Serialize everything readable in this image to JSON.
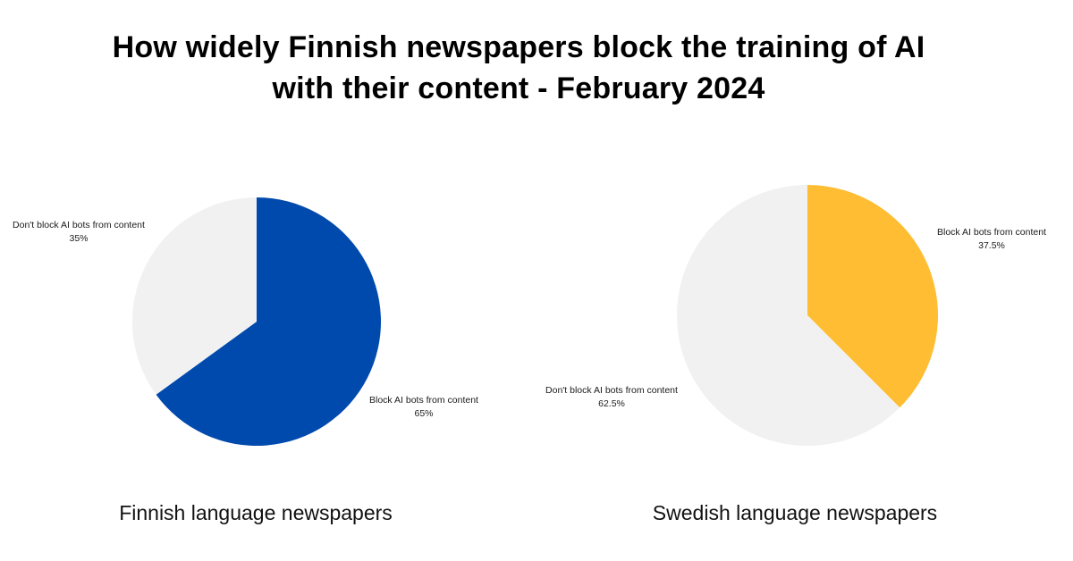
{
  "title": {
    "line1": "How widely Finnish newspapers block the training of AI",
    "line2": "with their content - February 2024"
  },
  "chart_data": [
    {
      "type": "pie",
      "caption": "Finnish language newspapers",
      "slices": [
        {
          "label": "Block AI bots from content",
          "value": 65,
          "value_label": "65%",
          "color": "#004aad"
        },
        {
          "label": "Don't block AI bots from content",
          "value": 35,
          "value_label": "35%",
          "color": "#f1f1f1"
        }
      ]
    },
    {
      "type": "pie",
      "caption": "Swedish language newspapers",
      "slices": [
        {
          "label": "Block AI bots from content",
          "value": 37.5,
          "value_label": "37.5%",
          "color": "#ffbd33"
        },
        {
          "label": "Don't block AI bots from content",
          "value": 62.5,
          "value_label": "62.5%",
          "color": "#f1f1f1"
        }
      ]
    }
  ]
}
